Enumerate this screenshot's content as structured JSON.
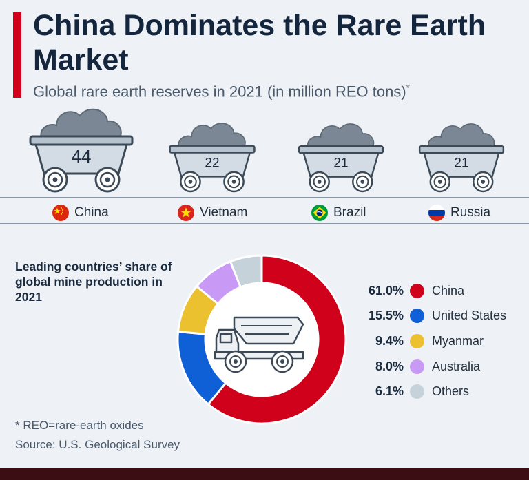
{
  "header": {
    "title": "China Dominates the Rare Earth Market",
    "subtitle": "Global rare earth reserves in 2021 (in million REO tons)",
    "subtitle_marker": "*"
  },
  "icons": [
    "mine-cart-icon",
    "dump-truck-icon",
    "flag-china-icon",
    "flag-vietnam-icon",
    "flag-brazil-icon",
    "flag-russia-icon"
  ],
  "colors": {
    "accent": "#d0021b",
    "china": "#d0021b",
    "united_states": "#0f5fd6",
    "myanmar": "#ebc130",
    "australia": "#c89af5",
    "others": "#c6d2da"
  },
  "chart_data": [
    {
      "type": "bar",
      "categories": [
        "China",
        "Vietnam",
        "Brazil",
        "Russia"
      ],
      "values": [
        44,
        22,
        21,
        21
      ],
      "title": "Global rare earth reserves in 2021 (in million REO tons)"
    },
    {
      "type": "pie",
      "title": "Leading countries’ share of global mine production in 2021",
      "categories": [
        "China",
        "United States",
        "Myanmar",
        "Australia",
        "Others"
      ],
      "values": [
        61.0,
        15.5,
        9.4,
        8.0,
        6.1
      ],
      "value_labels": [
        "61.0%",
        "15.5%",
        "9.4%",
        "8.0%",
        "6.1%"
      ],
      "legend": "right"
    }
  ],
  "footnotes": {
    "reo": "* REO=rare-earth oxides",
    "source": "Source: U.S. Geological Survey"
  }
}
